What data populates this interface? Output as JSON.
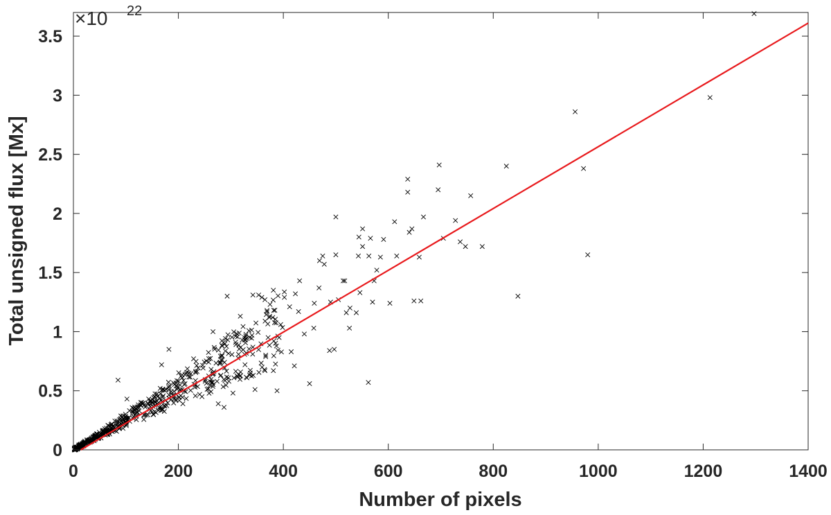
{
  "chart_data": {
    "type": "scatter",
    "title": "",
    "xlabel": "Number of pixels",
    "ylabel": "Total unsigned flux [Mx]",
    "y_exponent_base": "×10",
    "y_exponent_power": "22",
    "xlim": [
      0,
      1400
    ],
    "ylim": [
      0,
      3.7
    ],
    "x_ticks": [
      0,
      200,
      400,
      600,
      800,
      1000,
      1200,
      1400
    ],
    "x_tick_labels": [
      "0",
      "200",
      "400",
      "600",
      "800",
      "1000",
      "1200",
      "1400"
    ],
    "y_ticks": [
      0,
      0.5,
      1,
      1.5,
      2,
      2.5,
      3,
      3.5
    ],
    "y_tick_labels": [
      "0",
      "0.5",
      "1",
      "1.5",
      "2",
      "2.5",
      "3",
      "3.5"
    ],
    "grid": false,
    "colors": {
      "points": "#000000",
      "fit": "#e8191c",
      "axes": "#262626"
    },
    "fit_line": {
      "x": [
        14,
        140,
        260,
        1400
      ],
      "y": [
        0.0,
        0.33,
        0.63,
        3.61
      ]
    },
    "cluster_seed": 7,
    "cluster_count": 620,
    "points": [
      [
        1297,
        3.69
      ],
      [
        1213,
        2.98
      ],
      [
        956,
        2.86
      ],
      [
        972,
        2.38
      ],
      [
        980,
        1.65
      ],
      [
        847,
        1.3
      ],
      [
        825,
        2.4
      ],
      [
        779,
        1.72
      ],
      [
        757,
        2.15
      ],
      [
        737,
        1.76
      ],
      [
        747,
        1.72
      ],
      [
        728,
        1.94
      ],
      [
        705,
        1.79
      ],
      [
        697,
        2.41
      ],
      [
        695,
        2.2
      ],
      [
        667,
        1.97
      ],
      [
        659,
        1.63
      ],
      [
        662,
        1.26
      ],
      [
        649,
        1.26
      ],
      [
        645,
        1.87
      ],
      [
        640,
        1.84
      ],
      [
        637,
        2.29
      ],
      [
        637,
        2.18
      ],
      [
        616,
        1.64
      ],
      [
        612,
        1.93
      ],
      [
        603,
        1.24
      ],
      [
        591,
        1.78
      ],
      [
        585,
        1.63
      ],
      [
        573,
        1.43
      ],
      [
        566,
        1.79
      ],
      [
        563,
        1.64
      ],
      [
        578,
        1.52
      ],
      [
        570,
        1.25
      ],
      [
        562,
        0.57
      ],
      [
        551,
        1.87
      ],
      [
        551,
        1.72
      ],
      [
        544,
        1.8
      ],
      [
        543,
        1.64
      ],
      [
        546,
        1.33
      ],
      [
        539,
        1.16
      ],
      [
        527,
        1.2
      ],
      [
        520,
        1.16
      ],
      [
        517,
        1.43
      ],
      [
        514,
        1.43
      ],
      [
        505,
        1.27
      ],
      [
        500,
        1.97
      ],
      [
        500,
        1.65
      ],
      [
        497,
        0.85
      ],
      [
        488,
        0.84
      ],
      [
        490,
        1.25
      ],
      [
        478,
        1.57
      ],
      [
        475,
        1.64
      ],
      [
        469,
        1.6
      ],
      [
        468,
        1.37
      ],
      [
        459,
        1.24
      ],
      [
        450,
        0.56
      ],
      [
        431,
        1.43
      ],
      [
        429,
        1.17
      ],
      [
        423,
        1.32
      ],
      [
        412,
        1.21
      ],
      [
        402,
        1.29
      ],
      [
        395,
        1.06
      ],
      [
        392,
        0.95
      ],
      [
        388,
        0.5
      ],
      [
        381,
        1.35
      ],
      [
        365,
        1.27
      ],
      [
        359,
        1.29
      ],
      [
        353,
        1.31
      ],
      [
        342,
        1.31
      ],
      [
        327,
        0.72
      ],
      [
        318,
        1.13
      ],
      [
        309,
        0.91
      ],
      [
        293,
        1.3
      ],
      [
        280,
        0.74
      ],
      [
        266,
        1.0
      ],
      [
        245,
        0.45
      ],
      [
        229,
        0.77
      ],
      [
        207,
        0.51
      ],
      [
        182,
        0.85
      ],
      [
        168,
        0.72
      ],
      [
        155,
        0.41
      ],
      [
        128,
        0.38
      ],
      [
        102,
        0.43
      ],
      [
        85,
        0.59
      ],
      [
        440,
        0.98
      ],
      [
        415,
        0.83
      ],
      [
        371,
        0.95
      ],
      [
        337,
        0.65
      ],
      [
        304,
        0.48
      ],
      [
        276,
        0.39
      ],
      [
        251,
        0.58
      ],
      [
        526,
        1.03
      ],
      [
        458,
        1.03
      ],
      [
        421,
        0.71
      ],
      [
        381,
        0.67
      ],
      [
        346,
        0.51
      ],
      [
        313,
        0.62
      ],
      [
        287,
        0.36
      ]
    ]
  }
}
